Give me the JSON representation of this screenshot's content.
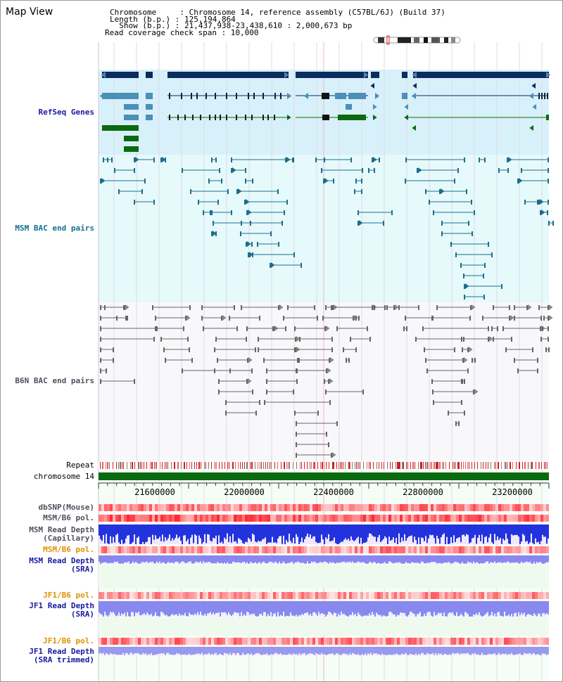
{
  "view_title": "Map View",
  "info": {
    "chromosome_line": "Chromosome     : Chromosome 14, reference assembly (C57BL/6J) (Build 37)",
    "length_line": "Length (b.p.) : 125,194,864",
    "show_line": "  Show (b.p.) : 21,437,938-23,438,610 : 2,000,673 bp",
    "coverage_line": "Read coverage check span : 10,000"
  },
  "tracks": {
    "refseq_genes": "RefSeq Genes",
    "msm_bac": "MSM BAC end pairs",
    "b6n_bac": "B6N BAC end pairs",
    "repeat": "Repeat",
    "chromosome": "chromosome 14",
    "dbsnp": "dbSNP(Mouse)",
    "msm_b6_pol_1": "MSM/B6 pol.",
    "msm_read_depth_cap_1": "MSM Read Depth",
    "msm_read_depth_cap_2": "(Capillary)",
    "msm_b6_pol_2": "MSM/B6 pol.",
    "msm_read_depth_sra_1": "MSM Read Depth",
    "msm_read_depth_sra_2": "(SRA)",
    "jf1_b6_pol_1": "JF1/B6 pol.",
    "jf1_read_depth_sra_1": "JF1 Read Depth",
    "jf1_read_depth_sra_2": "(SRA)",
    "jf1_b6_pol_2": "JF1/B6 pol.",
    "jf1_read_depth_trim_1": "JF1 Read Depth",
    "jf1_read_depth_trim_2": "(SRA trimmed)"
  },
  "axis_ticks": [
    "21600000",
    "22000000",
    "22400000",
    "22800000",
    "23200000"
  ],
  "colors": {
    "gene_dark": "#0a2c5e",
    "gene_light": "#4a90b8",
    "gene_green": "#0a6a10",
    "msm_bac": "#1d6e8c",
    "b6n_bac": "#666666",
    "chromosome": "#0a6a10",
    "refseq_bg": "#d8f0fa",
    "msm_bg": "#e6f9fb",
    "b6n_bg": "#f8f8fb",
    "snp_red": "#e83040",
    "depth_blue": "#2233dd",
    "sra_purple": "#8888ee"
  }
}
